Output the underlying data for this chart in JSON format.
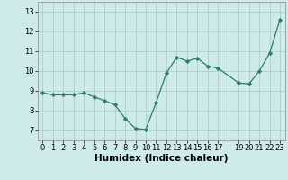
{
  "x": [
    0,
    1,
    2,
    3,
    4,
    5,
    6,
    7,
    8,
    9,
    10,
    11,
    12,
    13,
    14,
    15,
    16,
    17,
    19,
    20,
    21,
    22,
    23
  ],
  "y": [
    8.9,
    8.8,
    8.8,
    8.8,
    8.9,
    8.7,
    8.5,
    8.3,
    7.6,
    7.1,
    7.05,
    8.4,
    9.9,
    10.7,
    10.5,
    10.65,
    10.25,
    10.15,
    9.4,
    9.35,
    10.0,
    10.9,
    12.6
  ],
  "xlim": [
    -0.5,
    23.5
  ],
  "ylim": [
    6.5,
    13.5
  ],
  "yticks": [
    7,
    8,
    9,
    10,
    11,
    12,
    13
  ],
  "xtick_labels": [
    "0",
    "1",
    "2",
    "3",
    "4",
    "5",
    "6",
    "7",
    "8",
    "9",
    "10",
    "11",
    "12",
    "13",
    "14",
    "15",
    "16",
    "17",
    "",
    "19",
    "20",
    "21",
    "22",
    "23"
  ],
  "xlabel": "Humidex (Indice chaleur)",
  "line_color": "#2d7d6e",
  "marker": "D",
  "marker_size": 2.2,
  "bg_color": "#ceeaea",
  "grid_color": "#b0cccc",
  "ylabel_fontsize": 6.5,
  "xlabel_fontsize": 7.5,
  "tick_fontsize": 6.0
}
